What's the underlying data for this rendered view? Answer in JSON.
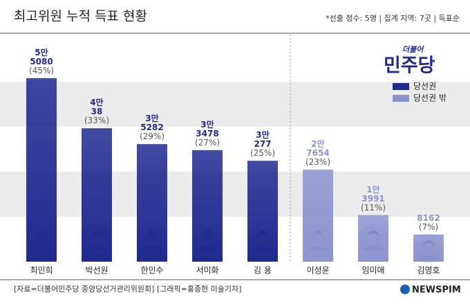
{
  "chart_data": {
    "type": "bar",
    "title": "최고위원 누적 득표 현황",
    "note": "*선출 정수: 5명 | 집계 지역: 7곳 | 득표순",
    "party_logo": [
      "더불어",
      "민주당"
    ],
    "categories": [
      "최민희",
      "박선원",
      "한민수",
      "서미화",
      "김 용",
      "이성윤",
      "임미애",
      "김영호"
    ],
    "series": [
      {
        "name": "당선권",
        "color": "#1f2a8f",
        "values": [
          55080,
          40038,
          35282,
          33478,
          30277,
          null,
          null,
          null
        ]
      },
      {
        "name": "당선권 밖",
        "color": "#8c94cf",
        "values": [
          null,
          null,
          null,
          null,
          null,
          27654,
          13991,
          8162
        ]
      }
    ],
    "value_labels": [
      "5만\n5080",
      "4만\n38",
      "3만\n5282",
      "3만\n3478",
      "3만\n277",
      "2만\n7654",
      "1만\n3991",
      "8162"
    ],
    "share_labels": [
      "(45%)",
      "(33%)",
      "(29%)",
      "(27%)",
      "(25%)",
      "(23%)",
      "(11%)",
      "(7%)"
    ],
    "ylim": [
      0,
      70000
    ],
    "source": "[자료=더불어민주당 중앙당선거관리위원회]  [그래픽=홍종현 미술기자]",
    "brand": "NEWSPIM"
  }
}
